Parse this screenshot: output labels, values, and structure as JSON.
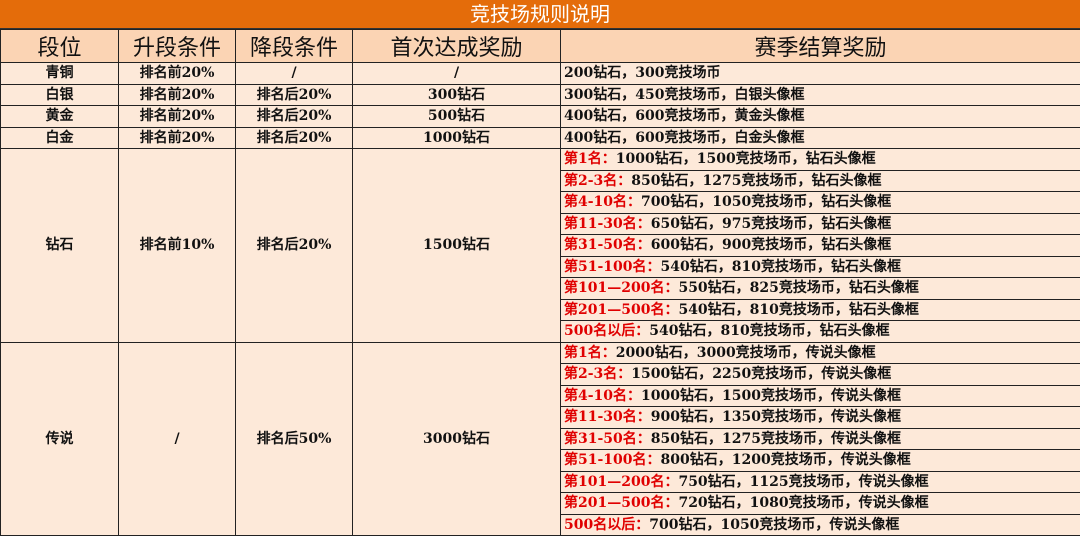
{
  "title": "竞技场规则说明",
  "headers": [
    "段位",
    "升段条件",
    "降段条件",
    "首次达成奖励",
    "赛季结算奖励"
  ],
  "simple_rows": [
    {
      "tier": "青铜",
      "promote": "排名前20%",
      "demote": "/",
      "first": "/",
      "season": "200钻石，300竞技场币"
    },
    {
      "tier": "白银",
      "promote": "排名前20%",
      "demote": "排名后20%",
      "first": "300钻石",
      "season": "300钻石，450竞技场币，白银头像框"
    },
    {
      "tier": "黄金",
      "promote": "排名前20%",
      "demote": "排名后20%",
      "first": "500钻石",
      "season": "400钻石，600竞技场币，黄金头像框"
    },
    {
      "tier": "白金",
      "promote": "排名前20%",
      "demote": "排名后20%",
      "first": "1000钻石",
      "season": "400钻石，600竞技场币，白金头像框"
    }
  ],
  "ranked_rows": [
    {
      "tier": "钻石",
      "promote": "排名前10%",
      "demote": "排名后20%",
      "first": "1500钻石",
      "rewards": [
        {
          "rank": "第1名：",
          "reward": "1000钻石，1500竞技场币，钻石头像框"
        },
        {
          "rank": "第2-3名：",
          "reward": "850钻石，1275竞技场币，钻石头像框"
        },
        {
          "rank": "第4-10名：",
          "reward": "700钻石，1050竞技场币，钻石头像框"
        },
        {
          "rank": "第11-30名：",
          "reward": "650钻石，975竞技场币，钻石头像框"
        },
        {
          "rank": "第31-50名：",
          "reward": "600钻石，900竞技场币，钻石头像框"
        },
        {
          "rank": "第51-100名：",
          "reward": "540钻石，810竞技场币，钻石头像框"
        },
        {
          "rank": "第101—200名：",
          "reward": "550钻石，825竞技场币，钻石头像框"
        },
        {
          "rank": "第201—500名：",
          "reward": "540钻石，810竞技场币，钻石头像框"
        },
        {
          "rank": "500名以后：",
          "reward": "540钻石，810竞技场币，钻石头像框"
        }
      ]
    },
    {
      "tier": "传说",
      "promote": "/",
      "demote": "排名后50%",
      "first": "3000钻石",
      "rewards": [
        {
          "rank": "第1名：",
          "reward": "2000钻石，3000竞技场币，传说头像框"
        },
        {
          "rank": "第2-3名：",
          "reward": "1500钻石，2250竞技场币，传说头像框"
        },
        {
          "rank": "第4-10名：",
          "reward": "1000钻石，1500竞技场币，传说头像框"
        },
        {
          "rank": "第11-30名：",
          "reward": "900钻石，1350竞技场币，传说头像框"
        },
        {
          "rank": "第31-50名：",
          "reward": "850钻石，1275竞技场币，传说头像框"
        },
        {
          "rank": "第51-100名：",
          "reward": "800钻石，1200竞技场币，传说头像框"
        },
        {
          "rank": "第101—200名：",
          "reward": "750钻石，1125竞技场币，传说头像框"
        },
        {
          "rank": "第201—500名：",
          "reward": "720钻石，1080竞技场币，传说头像框"
        },
        {
          "rank": "500名以后：",
          "reward": "700钻石，1050竞技场币，传说头像框"
        }
      ]
    }
  ],
  "colors": {
    "title_bg": "#e46c0a",
    "header_bg": "#fbd4b4",
    "cell_bg": "#fde9d9",
    "rank_text": "#e00000"
  }
}
